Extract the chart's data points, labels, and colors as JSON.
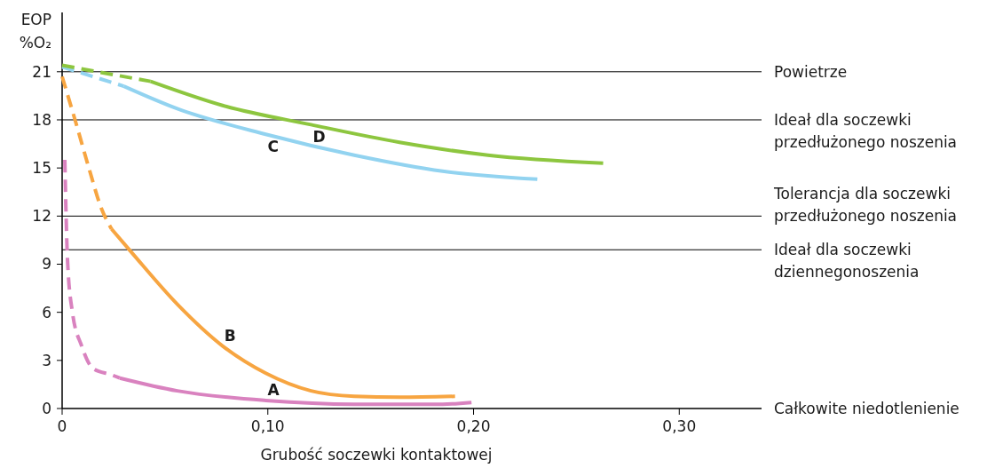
{
  "chart_data": {
    "type": "line",
    "xlabel": "Grubość soczewki kontaktowej",
    "ylabel": "EOP %O₂",
    "xlim": [
      0,
      0.34
    ],
    "ylim": [
      0,
      24.7
    ],
    "xticks": [
      {
        "value": 0,
        "label": "0"
      },
      {
        "value": 0.1,
        "label": "0,10"
      },
      {
        "value": 0.2,
        "label": "0,20"
      },
      {
        "value": 0.3,
        "label": "0,30"
      }
    ],
    "yticks": [
      0,
      3,
      6,
      9,
      12,
      15,
      18,
      21
    ],
    "grid": false,
    "marker": "none",
    "series": [
      {
        "color": "#d982bf",
        "line_style": "dashed",
        "x": [
          0.0013,
          0.0026,
          0.005,
          0.0095,
          0.015,
          0.024,
          0.028
        ],
        "values": [
          15.5,
          9.3,
          6.0,
          3.9,
          2.5,
          2.1,
          1.9
        ]
      },
      {
        "name": "A",
        "color": "#d982bf",
        "line_style": "solid",
        "x": [
          0.028,
          0.056,
          0.099,
          0.142,
          0.185,
          0.199
        ],
        "values": [
          1.9,
          1.1,
          0.5,
          0.27,
          0.27,
          0.38
        ]
      },
      {
        "color": "#f7a541",
        "line_style": "dashed",
        "x": [
          0,
          0.0065,
          0.013,
          0.019,
          0.024
        ],
        "values": [
          20.7,
          17.9,
          15,
          12.5,
          11.2
        ]
      },
      {
        "name": "B",
        "color": "#f7a541",
        "line_style": "solid",
        "x": [
          0.024,
          0.034,
          0.056,
          0.078,
          0.099,
          0.121,
          0.142,
          0.164,
          0.191
        ],
        "values": [
          11.2,
          9.7,
          6.5,
          3.9,
          2.2,
          1.1,
          0.76,
          0.7,
          0.76
        ]
      },
      {
        "color": "#92d3f0",
        "line_style": "dashed",
        "x": [
          0,
          0.03
        ],
        "values": [
          21.3,
          20.1
        ]
      },
      {
        "name": "C",
        "color": "#92d3f0",
        "line_style": "solid",
        "x": [
          0.03,
          0.056,
          0.099,
          0.142,
          0.185,
          0.231
        ],
        "values": [
          20.1,
          18.7,
          17.1,
          15.8,
          14.8,
          14.3
        ]
      },
      {
        "color": "#8dc63f",
        "line_style": "dashed",
        "x": [
          0,
          0.043
        ],
        "values": [
          21.4,
          20.4
        ]
      },
      {
        "name": "D",
        "color": "#8dc63f",
        "line_style": "solid",
        "x": [
          0.043,
          0.078,
          0.121,
          0.164,
          0.207,
          0.263
        ],
        "values": [
          20.4,
          18.9,
          17.7,
          16.6,
          15.8,
          15.3
        ]
      }
    ],
    "ref_lines": [
      {
        "axis": "y",
        "value": 21,
        "label": "Powietrze"
      },
      {
        "axis": "y",
        "value": 18,
        "label": "Ideał dla soczewki\nprzedłużonego noszenia"
      },
      {
        "axis": "y",
        "value": 12,
        "label": "Tolerancja dla soczewki\nprzedłużonego noszenia"
      },
      {
        "axis": "y",
        "value": 9.9,
        "label": "Ideał dla soczewki\ndziennegonoszenia"
      }
    ],
    "annotations": [
      "Całkowite niedotlenienie"
    ]
  }
}
